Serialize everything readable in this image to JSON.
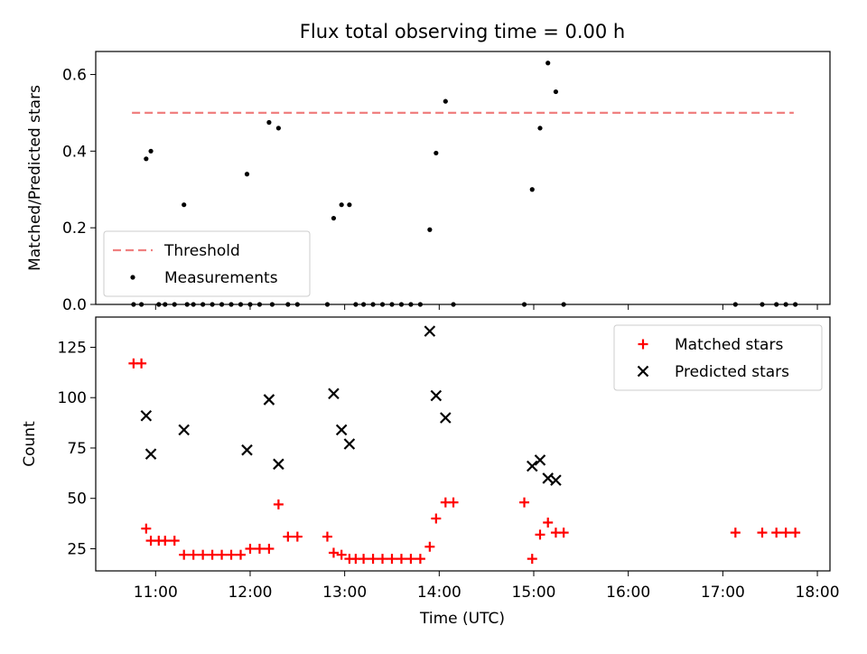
{
  "figure": {
    "title": "Flux total observing time = 0.00 h",
    "xlabel": "Time (UTC)"
  },
  "chart_data": [
    {
      "type": "scatter",
      "ylabel": "Matched/Predicted stars",
      "xlim": [
        "10:22",
        "18:08"
      ],
      "ylim": [
        0,
        0.66
      ],
      "x_ticks": [
        "11:00",
        "12:00",
        "13:00",
        "14:00",
        "15:00",
        "16:00",
        "17:00",
        "18:00"
      ],
      "y_ticks": [
        0.0,
        0.2,
        0.4,
        0.6
      ],
      "y_tick_labels": [
        "0.0",
        "0.2",
        "0.4",
        "0.6"
      ],
      "legend": {
        "position": "lower-left",
        "entries": [
          "Threshold",
          "Measurements"
        ]
      },
      "series": [
        {
          "name": "Threshold",
          "kind": "line",
          "color": "#f08080",
          "style": "dashed",
          "x": [
            "10:45",
            "17:45"
          ],
          "y": [
            0.5,
            0.5
          ]
        },
        {
          "name": "Measurements",
          "kind": "point",
          "color": "#000000",
          "x": [
            "10:46",
            "10:51",
            "10:54",
            "10:57",
            "11:02",
            "11:06",
            "11:12",
            "11:18",
            "11:20",
            "11:24",
            "11:30",
            "11:36",
            "11:42",
            "11:48",
            "11:54",
            "11:58",
            "12:00",
            "12:06",
            "12:12",
            "12:14",
            "12:18",
            "12:24",
            "12:30",
            "12:49",
            "12:53",
            "12:58",
            "13:03",
            "13:07",
            "13:12",
            "13:18",
            "13:24",
            "13:30",
            "13:36",
            "13:42",
            "13:48",
            "13:54",
            "13:58",
            "14:04",
            "14:09",
            "14:54",
            "14:59",
            "15:04",
            "15:09",
            "15:14",
            "15:19",
            "17:08",
            "17:25",
            "17:34",
            "17:40",
            "17:46"
          ],
          "y": [
            0.0,
            0.0,
            0.38,
            0.4,
            0.0,
            0.0,
            0.0,
            0.26,
            0.0,
            0.0,
            0.0,
            0.0,
            0.0,
            0.0,
            0.0,
            0.34,
            0.0,
            0.0,
            0.475,
            0.0,
            0.46,
            0.0,
            0.0,
            0.0,
            0.225,
            0.26,
            0.26,
            0.0,
            0.0,
            0.0,
            0.0,
            0.0,
            0.0,
            0.0,
            0.0,
            0.195,
            0.395,
            0.53,
            0.0,
            0.0,
            0.3,
            0.46,
            0.63,
            0.555,
            0.0,
            0.0,
            0.0,
            0.0,
            0.0,
            0.0
          ]
        }
      ]
    },
    {
      "type": "scatter",
      "ylabel": "Count",
      "xlim": [
        "10:22",
        "18:08"
      ],
      "ylim": [
        14,
        140
      ],
      "x_ticks": [
        "11:00",
        "12:00",
        "13:00",
        "14:00",
        "15:00",
        "16:00",
        "17:00",
        "18:00"
      ],
      "y_ticks": [
        25,
        50,
        75,
        100,
        125
      ],
      "y_tick_labels": [
        "25",
        "50",
        "75",
        "100",
        "125"
      ],
      "legend": {
        "position": "upper-right",
        "entries": [
          "Matched stars",
          "Predicted stars"
        ]
      },
      "series": [
        {
          "name": "Matched stars",
          "kind": "plus",
          "color": "#ff0000",
          "x": [
            "10:46",
            "10:51",
            "10:54",
            "10:57",
            "11:02",
            "11:06",
            "11:12",
            "11:18",
            "11:24",
            "11:30",
            "11:36",
            "11:42",
            "11:48",
            "11:54",
            "12:00",
            "12:06",
            "12:12",
            "12:18",
            "12:24",
            "12:30",
            "12:49",
            "12:53",
            "12:58",
            "13:03",
            "13:07",
            "13:12",
            "13:18",
            "13:24",
            "13:30",
            "13:36",
            "13:42",
            "13:48",
            "13:54",
            "13:58",
            "14:04",
            "14:09",
            "14:54",
            "14:59",
            "15:04",
            "15:09",
            "15:14",
            "15:19",
            "17:08",
            "17:25",
            "17:34",
            "17:40",
            "17:46"
          ],
          "y": [
            117,
            117,
            35,
            29,
            29,
            29,
            29,
            22,
            22,
            22,
            22,
            22,
            22,
            22,
            25,
            25,
            25,
            47,
            31,
            31,
            31,
            23,
            22,
            20,
            20,
            20,
            20,
            20,
            20,
            20,
            20,
            20,
            26,
            40,
            48,
            48,
            48,
            20,
            32,
            38,
            33,
            33,
            33,
            33,
            33,
            33,
            33
          ]
        },
        {
          "name": "Predicted stars",
          "kind": "cross",
          "color": "#000000",
          "x": [
            "10:54",
            "10:57",
            "11:18",
            "11:58",
            "12:12",
            "12:18",
            "12:53",
            "12:58",
            "13:03",
            "13:54",
            "13:58",
            "14:04",
            "14:59",
            "15:04",
            "15:09",
            "15:14"
          ],
          "y": [
            91,
            72,
            84,
            74,
            99,
            67,
            102,
            84,
            77,
            133,
            101,
            90,
            66,
            69,
            60,
            59
          ]
        }
      ]
    }
  ]
}
